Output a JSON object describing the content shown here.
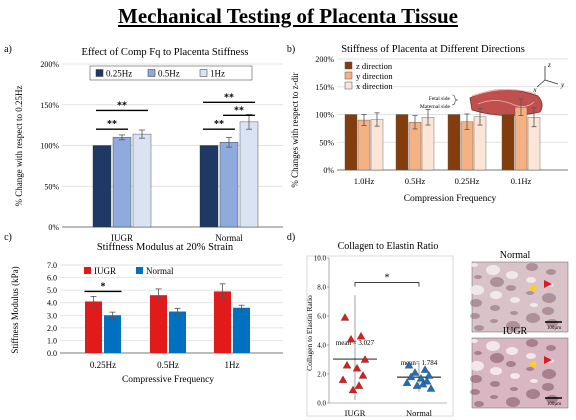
{
  "title": "Mechanical Testing of Placenta Tissue",
  "chart_data": [
    {
      "panel": "a)",
      "type": "bar",
      "title": "Effect of Comp Fq to Placenta Stiffness",
      "ylabel": "% Change with respect to 0.25Hz",
      "xlabel": "",
      "ylim": [
        0,
        200
      ],
      "yticks": [
        "0%",
        "50%",
        "100%",
        "150%",
        "200%"
      ],
      "yticks_values": [
        0,
        50,
        100,
        150,
        200
      ],
      "categories": [
        "IUGR",
        "Normal"
      ],
      "series": [
        {
          "name": "0.25Hz",
          "color": "#1f3864",
          "values": [
            100,
            100
          ],
          "errors": [
            0,
            0
          ]
        },
        {
          "name": "0.5Hz",
          "color": "#8faadc",
          "values": [
            110,
            104
          ],
          "errors": [
            3,
            6
          ]
        },
        {
          "name": "1Hz",
          "color": "#dae3f3",
          "values": [
            114,
            129
          ],
          "errors": [
            5,
            9
          ]
        }
      ],
      "legend": "top",
      "significance": [
        {
          "group": 0,
          "from": 0,
          "to": 1,
          "y": 120,
          "label": "**"
        },
        {
          "group": 0,
          "from": 0,
          "to": 2,
          "y": 143,
          "label": "**"
        },
        {
          "group": 1,
          "from": 0,
          "to": 1,
          "y": 120,
          "label": "**"
        },
        {
          "group": 1,
          "from": 1,
          "to": 2,
          "y": 137,
          "label": "**"
        },
        {
          "group": 1,
          "from": 0,
          "to": 2,
          "y": 153,
          "label": "**"
        }
      ]
    },
    {
      "panel": "b)",
      "type": "bar",
      "title": "Stiffness of Placenta at Different Directions",
      "ylabel": "% Changes with respect to z-dir",
      "xlabel": "Compression Frequency",
      "ylim": [
        0,
        200
      ],
      "yticks": [
        "0%",
        "50%",
        "100%",
        "150%",
        "200%"
      ],
      "yticks_values": [
        0,
        50,
        100,
        150,
        200
      ],
      "categories": [
        "1.0Hz",
        "0.5Hz",
        "0.25Hz",
        "0.1Hz"
      ],
      "series": [
        {
          "name": "z direction",
          "color": "#843c0c",
          "values": [
            100,
            100,
            100,
            100
          ],
          "errors": [
            0,
            0,
            0,
            0
          ]
        },
        {
          "name": "y direction",
          "color": "#f4b183",
          "values": [
            90,
            86,
            87,
            113
          ],
          "errors": [
            10,
            12,
            14,
            15
          ]
        },
        {
          "name": "x direction",
          "color": "#fbe5d6",
          "values": [
            91,
            95,
            96,
            95
          ],
          "errors": [
            12,
            14,
            15,
            17
          ]
        }
      ],
      "legend": "top-left",
      "inset_labels": [
        "Fetal side",
        "Maternal side"
      ],
      "axis_letters": [
        "z",
        "x",
        "y"
      ]
    },
    {
      "panel": "c)",
      "type": "bar",
      "title": "Stiffness Modulus at 20% Strain",
      "ylabel": "Stiffness Modulus (kPa)",
      "xlabel": "Compressive Frequency",
      "ylim": [
        0,
        7
      ],
      "yticks": [
        "0.0",
        "1.0",
        "2.0",
        "3.0",
        "4.0",
        "5.0",
        "6.0",
        "7.0"
      ],
      "yticks_values": [
        0,
        1,
        2,
        3,
        4,
        5,
        6,
        7
      ],
      "categories": [
        "0.25Hz",
        "0.5Hz",
        "1Hz"
      ],
      "series": [
        {
          "name": "IUGR",
          "color": "#e31a1c",
          "values": [
            4.1,
            4.6,
            4.9
          ],
          "errors": [
            0.4,
            0.5,
            0.6
          ]
        },
        {
          "name": "Normal",
          "color": "#0070c0",
          "values": [
            3.0,
            3.3,
            3.6
          ],
          "errors": [
            0.25,
            0.25,
            0.2
          ]
        }
      ],
      "legend": "top-left",
      "significance": [
        {
          "group": 0,
          "from": 0,
          "to": 1,
          "y": 4.9,
          "label": "*"
        }
      ]
    },
    {
      "panel": "d)",
      "type": "scatter",
      "title": "Collagen to Elastin Ratio",
      "ylabel": "Collagen to Elastin Ratio",
      "xlabel": "",
      "ylim": [
        0,
        10
      ],
      "yticks": [
        "0.0",
        "2.0",
        "4.0",
        "6.0",
        "8.0",
        "10.0"
      ],
      "yticks_values": [
        0,
        2,
        4,
        6,
        8,
        10
      ],
      "categories": [
        "IUGR",
        "Normal"
      ],
      "groups": [
        {
          "name": "IUGR",
          "color": "#e31a1c",
          "mean": 3.027,
          "mean_label": "mean = 3.027",
          "sd": 4.4,
          "values": [
            5.9,
            4.6,
            4.4,
            3.0,
            2.6,
            2.4,
            1.9,
            1.6,
            1.2,
            0.9
          ]
        },
        {
          "name": "Normal",
          "color": "#1f6fb5",
          "mean": 1.784,
          "mean_label": "mean= 1.784",
          "sd": 1.0,
          "values": [
            2.6,
            2.3,
            2.1,
            1.9,
            1.8,
            1.7,
            1.5,
            1.4,
            1.3,
            1.2,
            1.0
          ]
        }
      ],
      "significance": [
        {
          "from": 0,
          "to": 1,
          "y": 8.3,
          "label": "*"
        }
      ]
    }
  ],
  "micrographs": [
    {
      "label": "Normal",
      "scale": "100µm"
    },
    {
      "label": "IUGR",
      "scale": "100µm"
    }
  ]
}
